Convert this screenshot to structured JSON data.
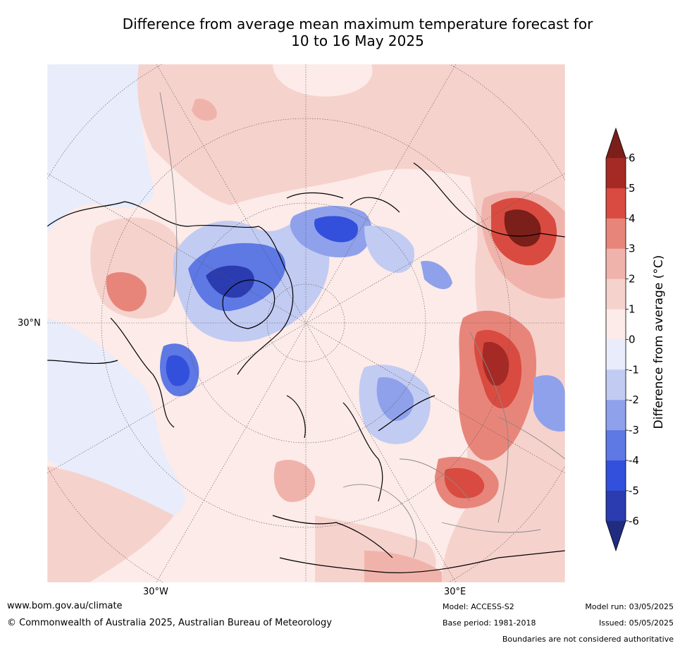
{
  "title_line1": "Difference from average mean maximum temperature forecast for",
  "title_line2": "10 to 16 May 2025",
  "map": {
    "lat_label": "30°N",
    "lon_label_left": "30°W",
    "lon_label_right": "30°E"
  },
  "colorbar": {
    "label": "Difference from average (°C)",
    "ticks": [
      "6",
      "5",
      "4",
      "3",
      "2",
      "1",
      "0",
      "-1",
      "-2",
      "-3",
      "-4",
      "-5",
      "-6"
    ],
    "colors": {
      "over": "#7a1f1a",
      "c5_6": "#a52a25",
      "c4_5": "#d94b40",
      "c3_4": "#e8857a",
      "c2_3": "#f0b3ab",
      "c1_2": "#f6d2cd",
      "c0_1": "#fcebe8",
      "cm1_0": "#e8ecfb",
      "cm2_m1": "#c2cbf2",
      "cm3_m2": "#8fa1ea",
      "cm4_m3": "#5e78e4",
      "cm5_m4": "#3350dc",
      "cm6_m5": "#2a3cb0",
      "under": "#1f2c80"
    }
  },
  "footer": {
    "website": "www.bom.gov.au/climate",
    "copyright": "© Commonwealth of Australia 2025, Australian Bureau of Meteorology",
    "model": "Model: ACCESS-S2",
    "base_period": "Base period: 1981-2018",
    "model_run": "Model run: 03/05/2025",
    "issued": "Issued: 05/05/2025",
    "disclaimer": "Boundaries are not considered authoritative"
  }
}
